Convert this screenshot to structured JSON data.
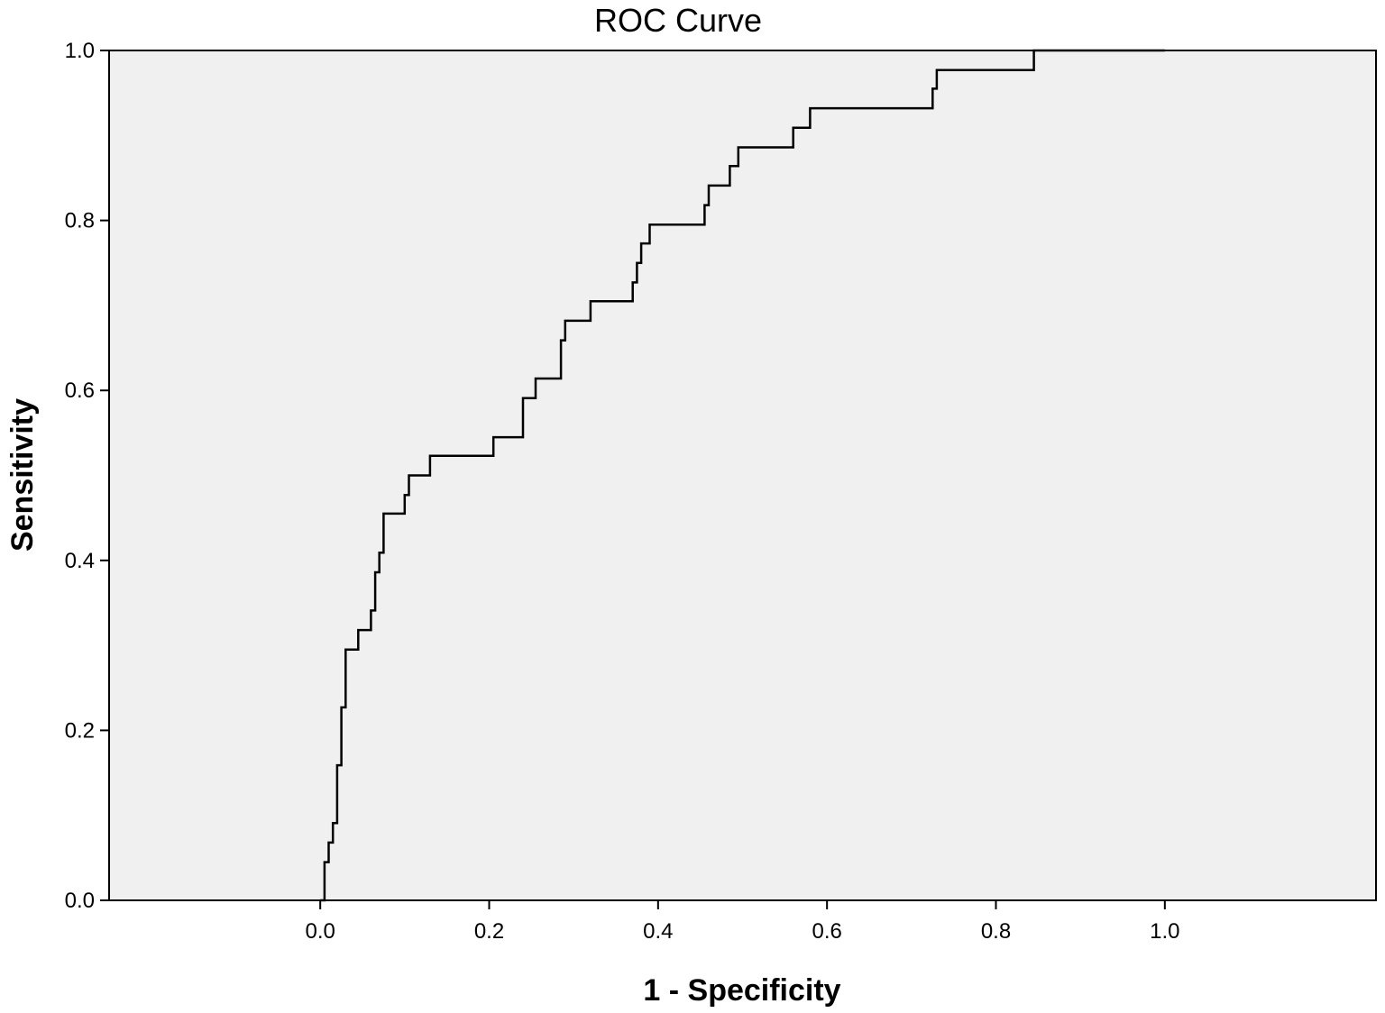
{
  "chart_data": {
    "type": "line",
    "title": "ROC Curve",
    "xlabel": "1 - Specificity",
    "ylabel": "Sensitivity",
    "xlim": [
      -0.25,
      1.25
    ],
    "ylim": [
      0,
      1
    ],
    "x_ticks": [
      "0.0",
      "0.2",
      "0.4",
      "0.6",
      "0.8",
      "1.0"
    ],
    "y_ticks": [
      "0.0",
      "0.2",
      "0.4",
      "0.6",
      "0.8",
      "1.0"
    ],
    "grid": false,
    "legend": "none",
    "colors": {
      "plot_background": "#f0f0f0",
      "line": "#000000"
    },
    "series": [
      {
        "x": [
          0.0,
          0.005,
          0.005,
          0.01,
          0.01,
          0.015,
          0.015,
          0.02,
          0.02,
          0.025,
          0.025,
          0.03,
          0.03,
          0.045,
          0.045,
          0.06,
          0.06,
          0.065,
          0.065,
          0.07,
          0.07,
          0.075,
          0.075,
          0.1,
          0.1,
          0.105,
          0.105,
          0.13,
          0.13,
          0.205,
          0.205,
          0.24,
          0.24,
          0.255,
          0.255,
          0.285,
          0.285,
          0.29,
          0.29,
          0.32,
          0.32,
          0.37,
          0.37,
          0.375,
          0.375,
          0.38,
          0.38,
          0.385,
          0.385,
          0.39,
          0.39,
          0.4,
          0.4,
          0.455,
          0.455,
          0.46,
          0.46,
          0.485,
          0.485,
          0.495,
          0.495,
          0.56,
          0.56,
          0.58,
          0.58,
          0.725,
          0.725,
          0.73,
          0.73,
          0.845,
          0.845,
          1.0
        ],
        "y": [
          0.0,
          0.0,
          0.045,
          0.045,
          0.068,
          0.068,
          0.091,
          0.091,
          0.159,
          0.159,
          0.227,
          0.227,
          0.295,
          0.295,
          0.318,
          0.318,
          0.341,
          0.341,
          0.386,
          0.386,
          0.409,
          0.409,
          0.455,
          0.455,
          0.477,
          0.477,
          0.5,
          0.5,
          0.523,
          0.523,
          0.545,
          0.545,
          0.591,
          0.591,
          0.614,
          0.614,
          0.659,
          0.659,
          0.682,
          0.682,
          0.705,
          0.705,
          0.727,
          0.727,
          0.75,
          0.75,
          0.773,
          0.773,
          0.773,
          0.773,
          0.795,
          0.795,
          0.795,
          0.795,
          0.818,
          0.818,
          0.841,
          0.841,
          0.864,
          0.864,
          0.886,
          0.886,
          0.909,
          0.909,
          0.932,
          0.932,
          0.955,
          0.955,
          0.977,
          0.977,
          1.0,
          1.0
        ]
      }
    ]
  }
}
